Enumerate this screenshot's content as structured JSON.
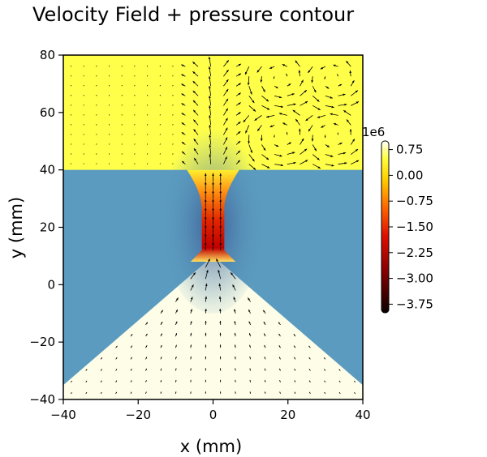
{
  "chart_data": {
    "type": "heatmap",
    "title": "Velocity Field + pressure contour",
    "xlabel": "x (mm)",
    "ylabel": "y (mm)",
    "xlim": [
      -40,
      40
    ],
    "ylim": [
      -40,
      80
    ],
    "x_ticks": [
      -40,
      -20,
      0,
      20,
      40
    ],
    "x_tick_labels": [
      "−40",
      "−20",
      "0",
      "20",
      "40"
    ],
    "y_ticks": [
      -40,
      -20,
      0,
      20,
      40,
      60,
      80
    ],
    "y_tick_labels": [
      "−40",
      "−20",
      "0",
      "20",
      "40",
      "60",
      "80"
    ],
    "grid": false,
    "colormap": "hot",
    "colorbar": {
      "scale_label": "1e6",
      "range": [
        -4.0,
        1.0
      ],
      "ticks": [
        0.75,
        0.0,
        -0.75,
        -1.5,
        -2.25,
        -3.0,
        -3.75
      ],
      "tick_labels": [
        "0.75",
        "0.00",
        "−0.75",
        "−1.50",
        "−2.25",
        "−3.00",
        "−3.75"
      ]
    },
    "regions": {
      "upper_chamber": {
        "y_range": [
          40,
          80
        ],
        "x_range": [
          -40,
          40
        ],
        "pressure": 0.1
      },
      "inlet_cone_apex": [
        0,
        10
      ],
      "cone_base_y": -35,
      "throat": {
        "x_range": [
          -3,
          3
        ],
        "y_range": [
          10,
          40
        ],
        "min_pressure": -3.8
      },
      "solid_color": "#5b9bbf"
    },
    "vector_field": {
      "description": "velocity arrows",
      "jet_direction": "upward through throat",
      "inlet_flow": "converging toward throat apex"
    }
  }
}
